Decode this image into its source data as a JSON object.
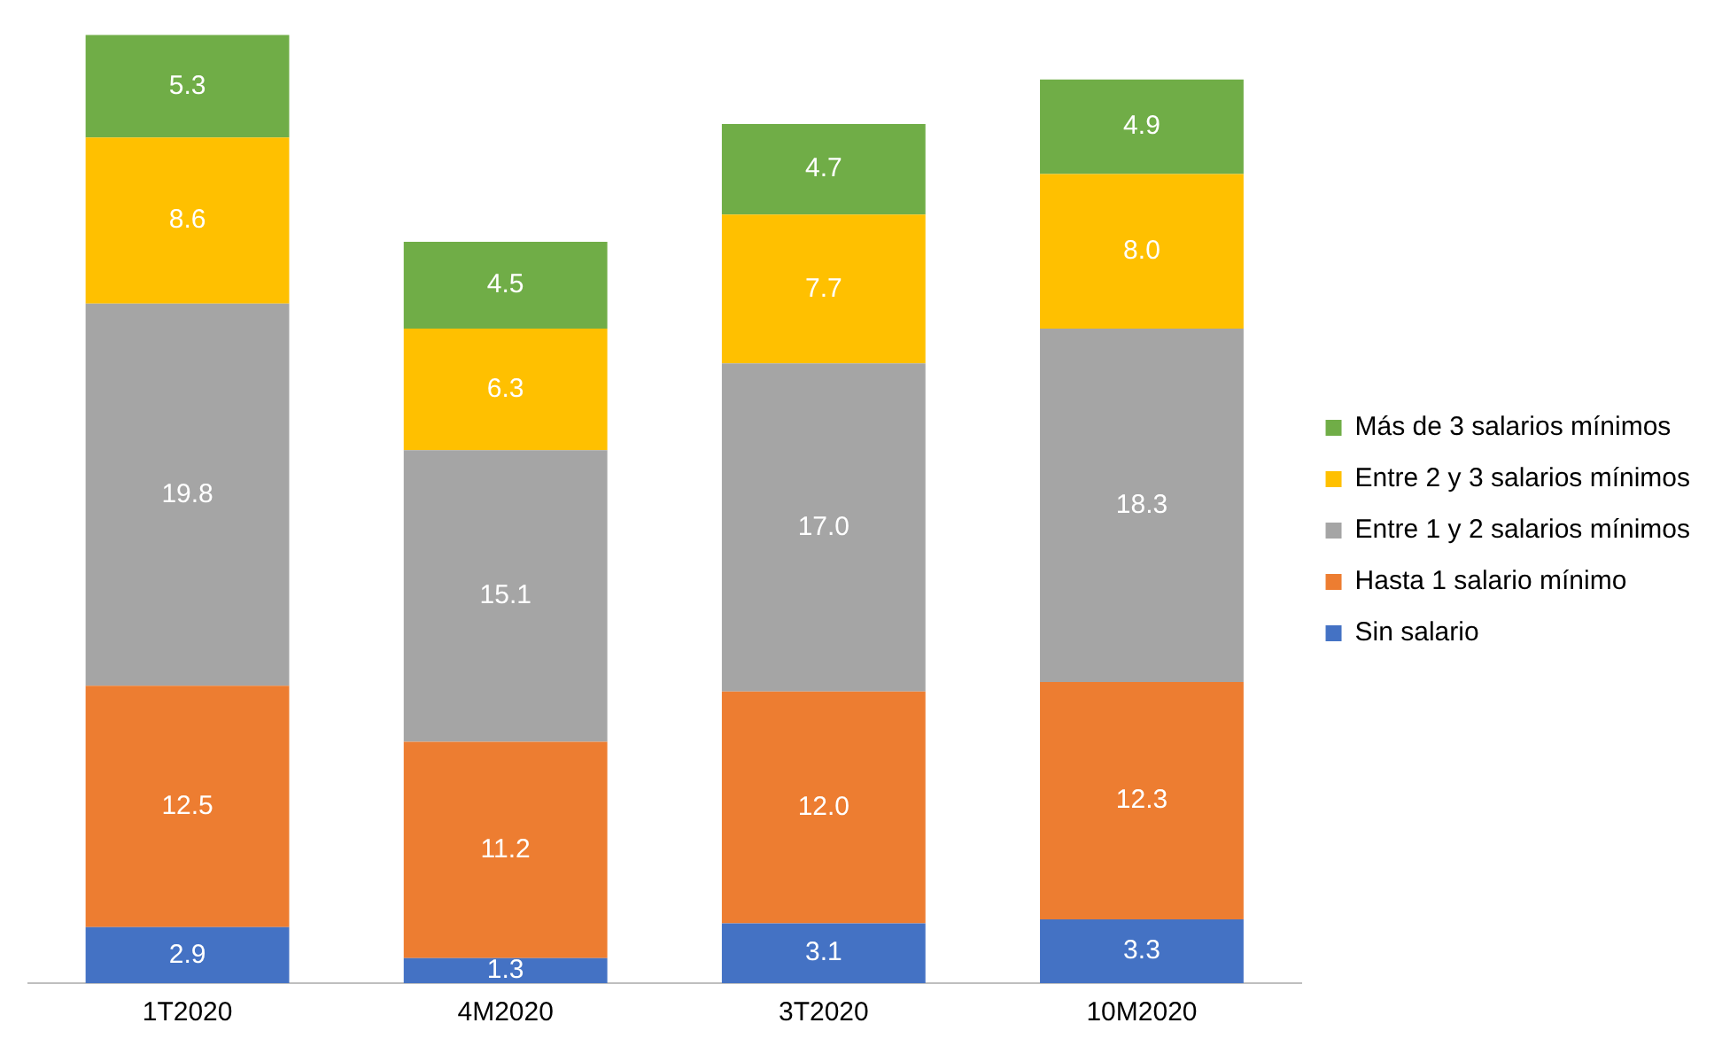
{
  "chart_data": {
    "type": "bar",
    "stacked": true,
    "categories": [
      "1T2020",
      "4M2020",
      "3T2020",
      "10M2020"
    ],
    "legend": "right",
    "grid": false,
    "series": [
      {
        "name": "Sin salario",
        "color": "#4472c4",
        "values": [
          2.9,
          1.3,
          3.1,
          3.3
        ],
        "value_labels": [
          "2.9",
          "1.3",
          "3.1",
          "3.3"
        ]
      },
      {
        "name": "Hasta 1 salario mínimo",
        "color": "#ed7d31",
        "values": [
          12.5,
          11.2,
          12.0,
          12.3
        ],
        "value_labels": [
          "12.5",
          "11.2",
          "12.0",
          "12.3"
        ]
      },
      {
        "name": "Entre 1 y 2 salarios mínimos",
        "color": "#a5a5a5",
        "values": [
          19.8,
          15.1,
          17.0,
          18.3
        ],
        "value_labels": [
          "19.8",
          "15.1",
          "17.0",
          "18.3"
        ]
      },
      {
        "name": "Entre 2 y 3 salarios mínimos",
        "color": "#ffc000",
        "values": [
          8.6,
          6.3,
          7.7,
          8.0
        ],
        "value_labels": [
          "8.6",
          "6.3",
          "7.7",
          "8.0"
        ]
      },
      {
        "name": "Más de 3 salarios mínimos",
        "color": "#70ad47",
        "values": [
          5.3,
          4.5,
          4.7,
          4.9
        ],
        "value_labels": [
          "5.3",
          "4.5",
          "4.7",
          "4.9"
        ]
      }
    ]
  }
}
